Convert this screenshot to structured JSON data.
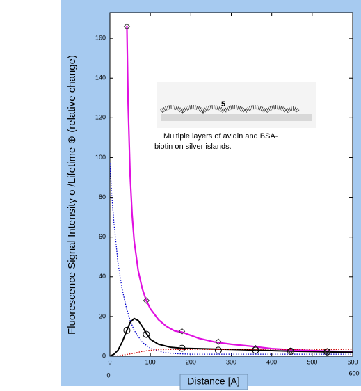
{
  "chart_data": {
    "type": "line",
    "y_label": "Fluorescence Signal  Intensity o /Lifetime ⊕ (relative change)",
    "x_label": "Distance  [A]",
    "xlim": [
      0,
      600
    ],
    "xticks": [
      0,
      100,
      200,
      300,
      400,
      500,
      600
    ],
    "ylim": [
      0,
      173
    ],
    "yticks": [
      0,
      20,
      40,
      60,
      80,
      100,
      120,
      140,
      160
    ],
    "inset_label": "5",
    "caption": [
      "Multiple layers of avidin and BSA-",
      "biotin on silver islands."
    ],
    "corner_labels": [
      "0",
      "600"
    ],
    "series": [
      {
        "color": "#e010e0",
        "style": "solid",
        "width": 2.2,
        "line": true,
        "marker": "none",
        "x": [
          42,
          45,
          50,
          55,
          60,
          70,
          80,
          90,
          100,
          120,
          140,
          160,
          180,
          220,
          260,
          300,
          350,
          400,
          450,
          500,
          550,
          600
        ],
        "values": [
          166,
          127,
          91,
          71,
          58,
          43,
          34,
          28,
          23.9,
          18.4,
          15,
          12.7,
          12,
          9,
          7.1,
          6,
          5,
          3.8,
          3.2,
          2.8,
          2.5,
          2.3
        ]
      },
      {
        "color": "#000000",
        "style": "solid",
        "width": 2,
        "line": true,
        "marker": "none",
        "x": [
          0,
          10,
          20,
          30,
          40,
          50,
          60,
          70,
          80,
          90,
          100,
          120,
          150,
          180,
          220,
          260,
          300,
          350,
          400,
          450,
          500,
          550,
          600
        ],
        "values": [
          0,
          1,
          3,
          7,
          12,
          17,
          19,
          18,
          15,
          11.5,
          8.5,
          6,
          4.5,
          4,
          3.8,
          3.6,
          3.4,
          3.1,
          2.8,
          2.5,
          2.3,
          2.1,
          2
        ]
      },
      {
        "color": "#0000cc",
        "style": "dotted",
        "width": 1.3,
        "line": true,
        "marker": "none",
        "x": [
          0,
          5,
          10,
          20,
          30,
          40,
          50,
          60,
          80,
          100,
          130,
          160,
          200,
          300,
          400,
          500,
          600
        ],
        "values": [
          97,
          80,
          67,
          47,
          34,
          25,
          18,
          13,
          7,
          4,
          2,
          1.3,
          1,
          1,
          1,
          1,
          1
        ]
      },
      {
        "color": "#cc0000",
        "style": "dotted",
        "width": 1.3,
        "line": true,
        "marker": "none",
        "x": [
          0,
          20,
          40,
          60,
          80,
          100,
          120,
          150,
          200,
          300,
          600
        ],
        "values": [
          0,
          0.3,
          0.8,
          1.5,
          2.4,
          3,
          3.3,
          3.4,
          3.4,
          3.4,
          3.4
        ]
      },
      {
        "color": "#333333",
        "style": "solid",
        "width": 1,
        "line": false,
        "marker": "diamond",
        "x": [
          42,
          90,
          178,
          268,
          360,
          447,
          537
        ],
        "values": [
          166,
          28,
          12.5,
          7.3,
          4,
          2.8,
          2.5
        ]
      },
      {
        "color": "#000000",
        "style": "solid",
        "width": 1,
        "line": false,
        "marker": "circle",
        "x": [
          42,
          90,
          178,
          268,
          360,
          447,
          537
        ],
        "values": [
          13,
          11,
          4,
          3,
          3,
          2.5,
          2.2
        ]
      }
    ]
  }
}
